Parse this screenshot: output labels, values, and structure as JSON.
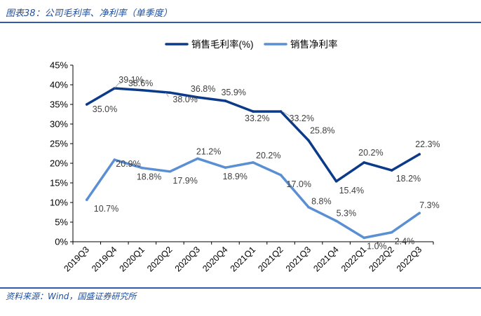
{
  "header": {
    "title": "图表38：公司毛利率、净利率（单季度）"
  },
  "footer": {
    "source": "资料来源：Wind，国盛证券研究所"
  },
  "colors": {
    "gross": "#0c3a8b",
    "net": "#5b8fd4",
    "axis": "#000000",
    "text": "#404040",
    "rule": "#2f5ba8"
  },
  "chart_data": {
    "type": "line",
    "title": "",
    "xlabel": "",
    "ylabel": "",
    "ylim": [
      0,
      45
    ],
    "yticks": [
      "0%",
      "5%",
      "10%",
      "15%",
      "20%",
      "25%",
      "30%",
      "35%",
      "40%",
      "45%"
    ],
    "categories": [
      "2019Q3",
      "2019Q4",
      "2020Q1",
      "2020Q2",
      "2020Q3",
      "2020Q4",
      "2021Q1",
      "2021Q2",
      "2021Q3",
      "2021Q4",
      "2022Q1",
      "2022Q2",
      "2022Q3"
    ],
    "legend_position": "top-center",
    "series": [
      {
        "name": "销售毛利率(%)",
        "values": [
          35.0,
          39.1,
          38.6,
          38.0,
          36.8,
          35.9,
          33.2,
          33.2,
          25.8,
          15.4,
          20.2,
          18.2,
          22.3
        ],
        "labels": [
          "35.0%",
          "39.1%",
          "38.6%",
          "38.0%",
          "36.8%",
          "35.9%",
          "33.2%",
          "33.2%",
          "25.8%",
          "15.4%",
          "20.2%",
          "18.2%",
          "22.3%"
        ]
      },
      {
        "name": "销售净利率",
        "values": [
          10.7,
          20.9,
          18.8,
          17.9,
          21.2,
          18.9,
          20.2,
          17.0,
          8.8,
          5.3,
          1.0,
          2.4,
          7.3
        ],
        "labels": [
          "10.7%",
          "20.9%",
          "18.8%",
          "17.9%",
          "21.2%",
          "18.9%",
          "20.2%",
          "17.0%",
          "8.8%",
          "5.3%",
          "1.0%",
          "2.4%",
          "7.3%"
        ]
      }
    ]
  }
}
